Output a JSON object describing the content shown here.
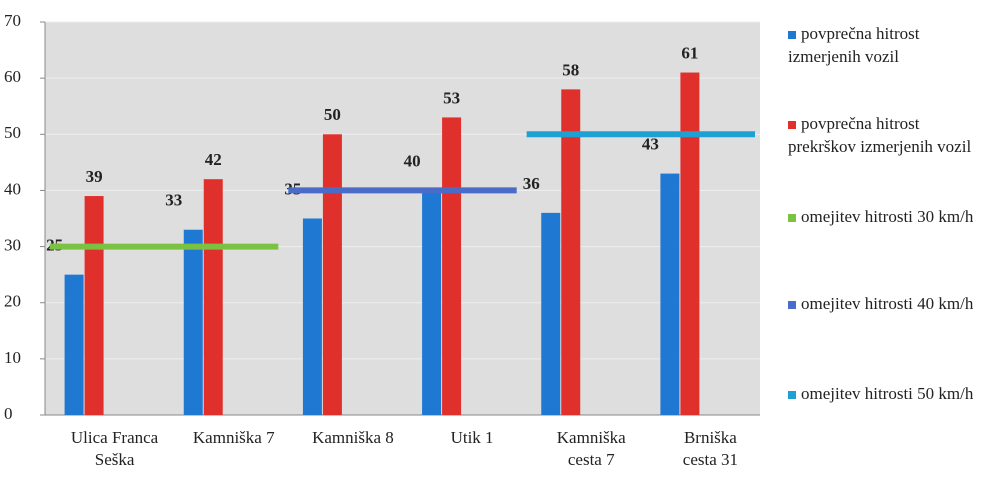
{
  "chart_data": {
    "type": "bar",
    "categories": [
      "Ulica Franca Seška",
      "Kamniška 7",
      "Kamniška 8",
      "Utik 1",
      "Kamniška cesta 7",
      "Brniška cesta 31"
    ],
    "series": [
      {
        "name": "povprečna hitrost izmerjenih vozil",
        "color": "#1f78d2",
        "type": "bar",
        "values": [
          25,
          33,
          35,
          40,
          36,
          43
        ]
      },
      {
        "name": "povprečna hitrost prekrškov izmerjenih vozil",
        "color": "#e0302c",
        "type": "bar",
        "values": [
          39,
          42,
          50,
          53,
          58,
          61
        ]
      },
      {
        "name": "omejitev hitrosti 30 km/h",
        "color": "#7cc242",
        "type": "line",
        "values": [
          30,
          30,
          null,
          null,
          null,
          null
        ]
      },
      {
        "name": "omejitev hitrosti 40 km/h",
        "color": "#4a6cc8",
        "type": "line",
        "values": [
          null,
          null,
          40,
          40,
          null,
          null
        ]
      },
      {
        "name": "omejitev hitrosti 50 km/h",
        "color": "#1ea0d2",
        "type": "line",
        "values": [
          null,
          null,
          null,
          null,
          50,
          50
        ]
      }
    ],
    "ylim": [
      0,
      70
    ],
    "yticks": [
      0,
      10,
      20,
      30,
      40,
      50,
      60,
      70
    ],
    "grid": true
  }
}
